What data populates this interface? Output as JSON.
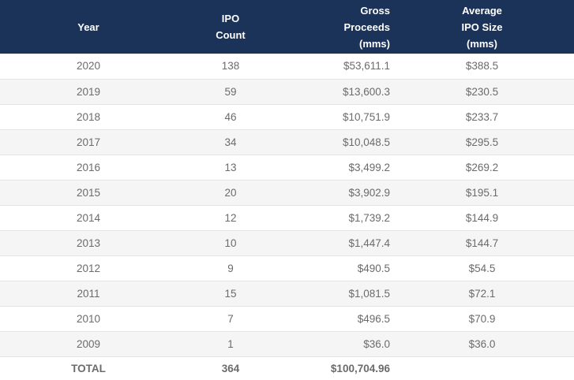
{
  "table": {
    "headers": {
      "year": [
        "Year"
      ],
      "count": [
        "IPO",
        "Count"
      ],
      "gross": [
        "Gross",
        "Proceeds",
        "(mms)"
      ],
      "avg": [
        "Average",
        "IPO Size",
        "(mms)"
      ]
    },
    "rows": [
      {
        "year": "2020",
        "count": "138",
        "gross": "$53,611.1",
        "avg": "$388.5"
      },
      {
        "year": "2019",
        "count": "59",
        "gross": "$13,600.3",
        "avg": "$230.5"
      },
      {
        "year": "2018",
        "count": "46",
        "gross": "$10,751.9",
        "avg": "$233.7"
      },
      {
        "year": "2017",
        "count": "34",
        "gross": "$10,048.5",
        "avg": "$295.5"
      },
      {
        "year": "2016",
        "count": "13",
        "gross": "$3,499.2",
        "avg": "$269.2"
      },
      {
        "year": "2015",
        "count": "20",
        "gross": "$3,902.9",
        "avg": "$195.1"
      },
      {
        "year": "2014",
        "count": "12",
        "gross": "$1,739.2",
        "avg": "$144.9"
      },
      {
        "year": "2013",
        "count": "10",
        "gross": "$1,447.4",
        "avg": "$144.7"
      },
      {
        "year": "2012",
        "count": "9",
        "gross": "$490.5",
        "avg": "$54.5"
      },
      {
        "year": "2011",
        "count": "15",
        "gross": "$1,081.5",
        "avg": "$72.1"
      },
      {
        "year": "2010",
        "count": "7",
        "gross": "$496.5",
        "avg": "$70.9"
      },
      {
        "year": "2009",
        "count": "1",
        "gross": "$36.0",
        "avg": "$36.0"
      }
    ],
    "total": {
      "label": "TOTAL",
      "count": "364",
      "gross": "$100,704.96",
      "avg": ""
    }
  },
  "colors": {
    "header_bg": "#1b3358",
    "header_text": "#ffffff",
    "body_text": "#6b6b6b",
    "stripe": "#f5f5f5",
    "row_border": "#e3e3e3"
  }
}
